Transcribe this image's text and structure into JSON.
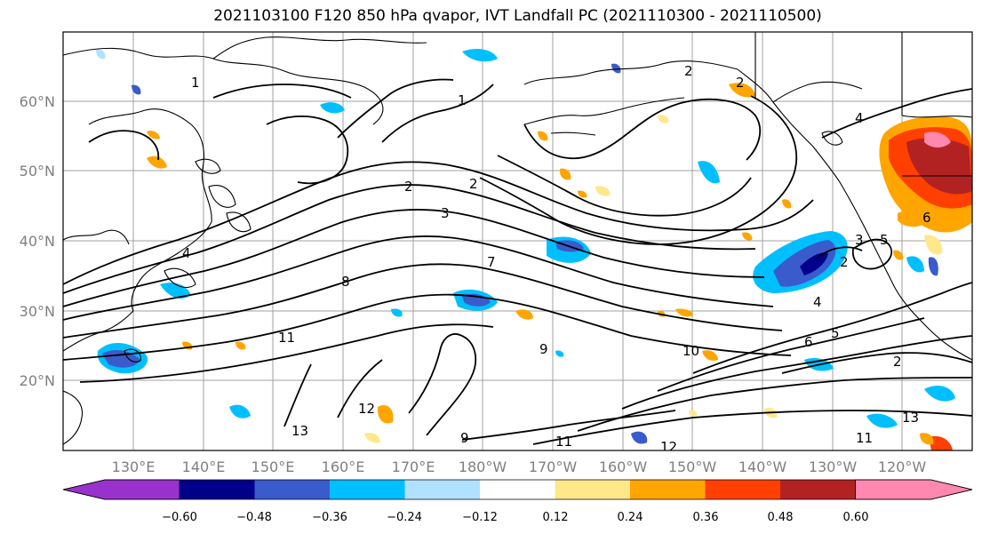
{
  "title": "2021103100 F120 850 hPa qvapor, IVT Landfall PC (2021110300 - 2021110500)",
  "map": {
    "lat_labels": [
      "60°N",
      "50°N",
      "40°N",
      "30°N",
      "20°N"
    ],
    "lon_labels": [
      "130°E",
      "140°E",
      "150°E",
      "160°E",
      "170°E",
      "180°W",
      "170°W",
      "160°W",
      "150°W",
      "140°W",
      "130°W",
      "120°W"
    ],
    "contour_labels": [
      "1",
      "2",
      "2",
      "2",
      "4",
      "3",
      "2",
      "1",
      "3",
      "4",
      "5",
      "6",
      "7",
      "8",
      "2",
      "4",
      "6",
      "5",
      "9",
      "10",
      "11",
      "12",
      "13",
      "9",
      "11",
      "12",
      "13",
      "11",
      "2"
    ]
  },
  "colorbar": {
    "colors": [
      "#9932cc",
      "#00008b",
      "#3a5bcc",
      "#00bfff",
      "#b0e2ff",
      "#ffffff",
      "#ffe88a",
      "#ffa500",
      "#ff4000",
      "#b22222",
      "#ff88b0"
    ],
    "tick_labels": [
      "−0.60",
      "−0.48",
      "−0.36",
      "−0.24",
      "−0.12",
      "0.12",
      "0.24",
      "0.36",
      "0.48",
      "0.60"
    ]
  }
}
